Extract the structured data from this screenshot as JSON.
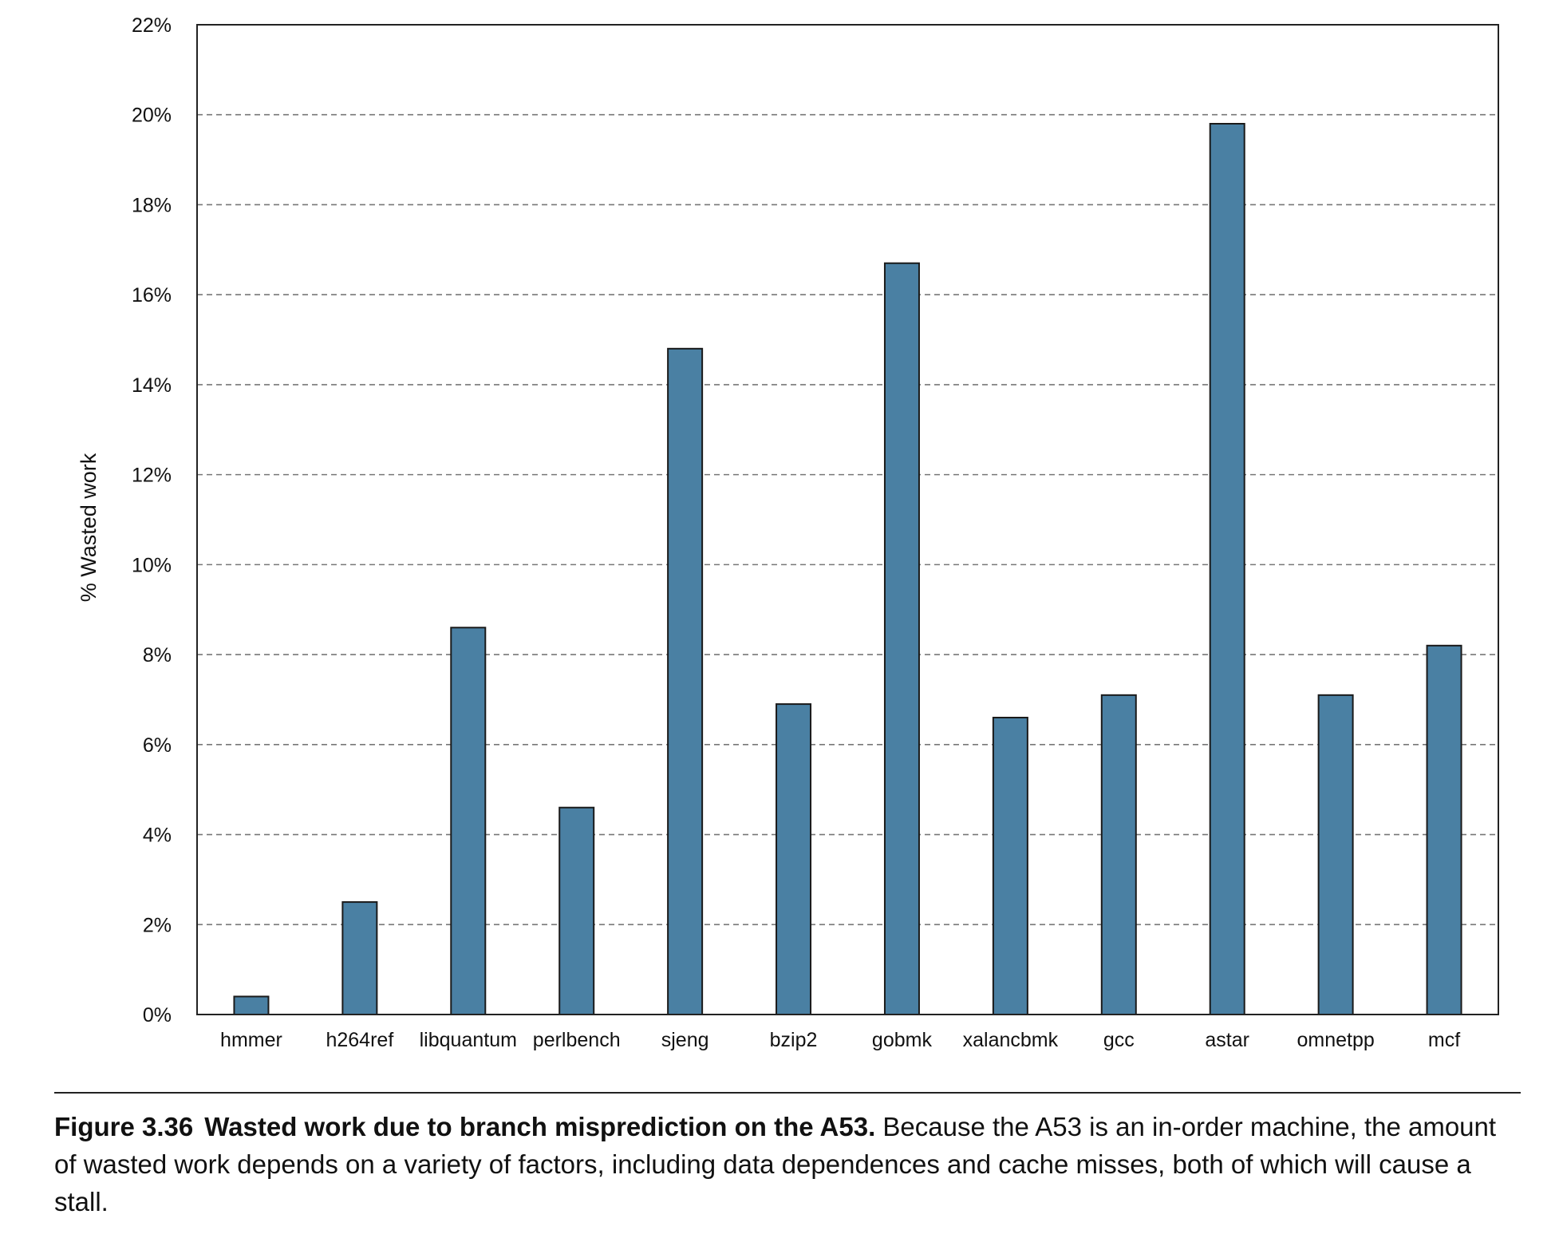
{
  "chart_data": {
    "type": "bar",
    "title": "",
    "xlabel": "",
    "ylabel": "% Wasted work",
    "ylim": [
      0,
      22
    ],
    "yticks": [
      "0%",
      "2%",
      "4%",
      "6%",
      "8%",
      "10%",
      "12%",
      "14%",
      "16%",
      "18%",
      "20%",
      "22%"
    ],
    "ytick_values": [
      0,
      2,
      4,
      6,
      8,
      10,
      12,
      14,
      16,
      18,
      20,
      22
    ],
    "grid": "horizontal dashed",
    "bar_color": "#4a80a3",
    "categories": [
      "hmmer",
      "h264ref",
      "libquantum",
      "perlbench",
      "sjeng",
      "bzip2",
      "gobmk",
      "xalancbmk",
      "gcc",
      "astar",
      "omnetpp",
      "mcf"
    ],
    "values": [
      0.4,
      2.5,
      8.6,
      4.6,
      14.8,
      6.9,
      16.7,
      6.6,
      7.1,
      19.8,
      7.1,
      8.2
    ]
  },
  "caption": {
    "number": "Figure 3.36",
    "title": "Wasted work due to branch misprediction on the A53.",
    "text": " Because the A53 is an in-order machine, the amount of wasted work depends on a variety of factors, including data dependences and cache misses, both of which will cause a stall."
  }
}
